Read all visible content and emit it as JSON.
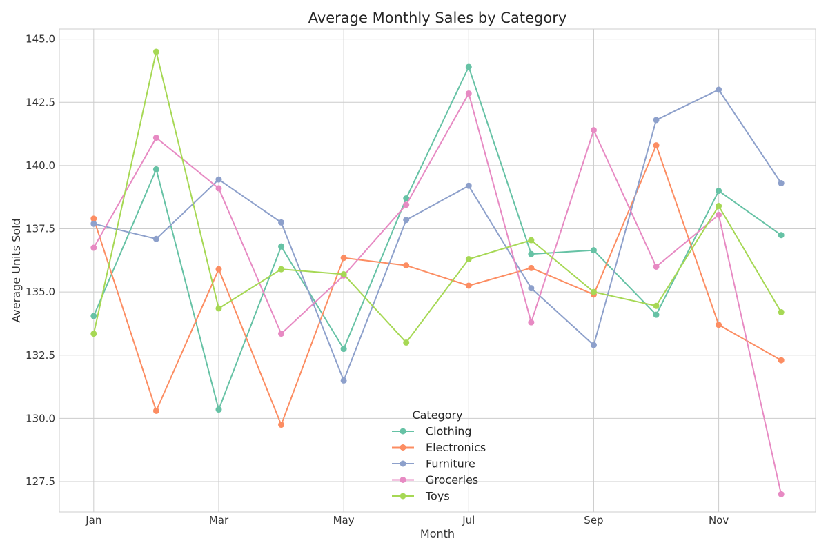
{
  "chart_data": {
    "type": "line",
    "title": "Average Monthly Sales by Category",
    "xlabel": "Month",
    "ylabel": "Average Units Sold",
    "x": [
      1,
      2,
      3,
      4,
      5,
      6,
      7,
      8,
      9,
      10,
      11,
      12
    ],
    "x_tick_values": [
      1,
      3,
      5,
      7,
      9,
      11
    ],
    "x_tick_labels": [
      "Jan",
      "Mar",
      "May",
      "Jul",
      "Sep",
      "Nov"
    ],
    "xlim": [
      0.45,
      12.55
    ],
    "ylim": [
      126.3,
      145.4
    ],
    "y_ticks": [
      "127.5",
      "130.0",
      "132.5",
      "135.0",
      "137.5",
      "140.0",
      "142.5",
      "145.0"
    ],
    "grid": true,
    "legend": {
      "title": "Category",
      "placement": "lower-center"
    },
    "series": [
      {
        "name": "Clothing",
        "color": "#66c2a5",
        "values": [
          134.05,
          139.85,
          130.35,
          136.8,
          132.75,
          138.7,
          143.9,
          136.5,
          136.65,
          134.1,
          139.0,
          137.25
        ]
      },
      {
        "name": "Electronics",
        "color": "#fc8d62",
        "values": [
          137.9,
          130.3,
          135.9,
          129.75,
          136.35,
          136.05,
          135.25,
          135.95,
          134.9,
          140.8,
          133.7,
          132.3
        ]
      },
      {
        "name": "Furniture",
        "color": "#8da0cb",
        "values": [
          137.7,
          137.1,
          139.45,
          137.75,
          131.5,
          137.85,
          139.2,
          135.15,
          132.9,
          141.8,
          143.0,
          139.3
        ]
      },
      {
        "name": "Groceries",
        "color": "#e78ac3",
        "values": [
          136.75,
          141.1,
          139.1,
          133.35,
          135.65,
          138.45,
          142.85,
          133.8,
          141.4,
          136.0,
          138.05,
          127.0
        ]
      },
      {
        "name": "Toys",
        "color": "#a6d854",
        "values": [
          133.35,
          144.5,
          134.35,
          135.9,
          135.7,
          133.0,
          136.3,
          137.05,
          135.0,
          134.45,
          138.4,
          134.2
        ]
      }
    ]
  }
}
